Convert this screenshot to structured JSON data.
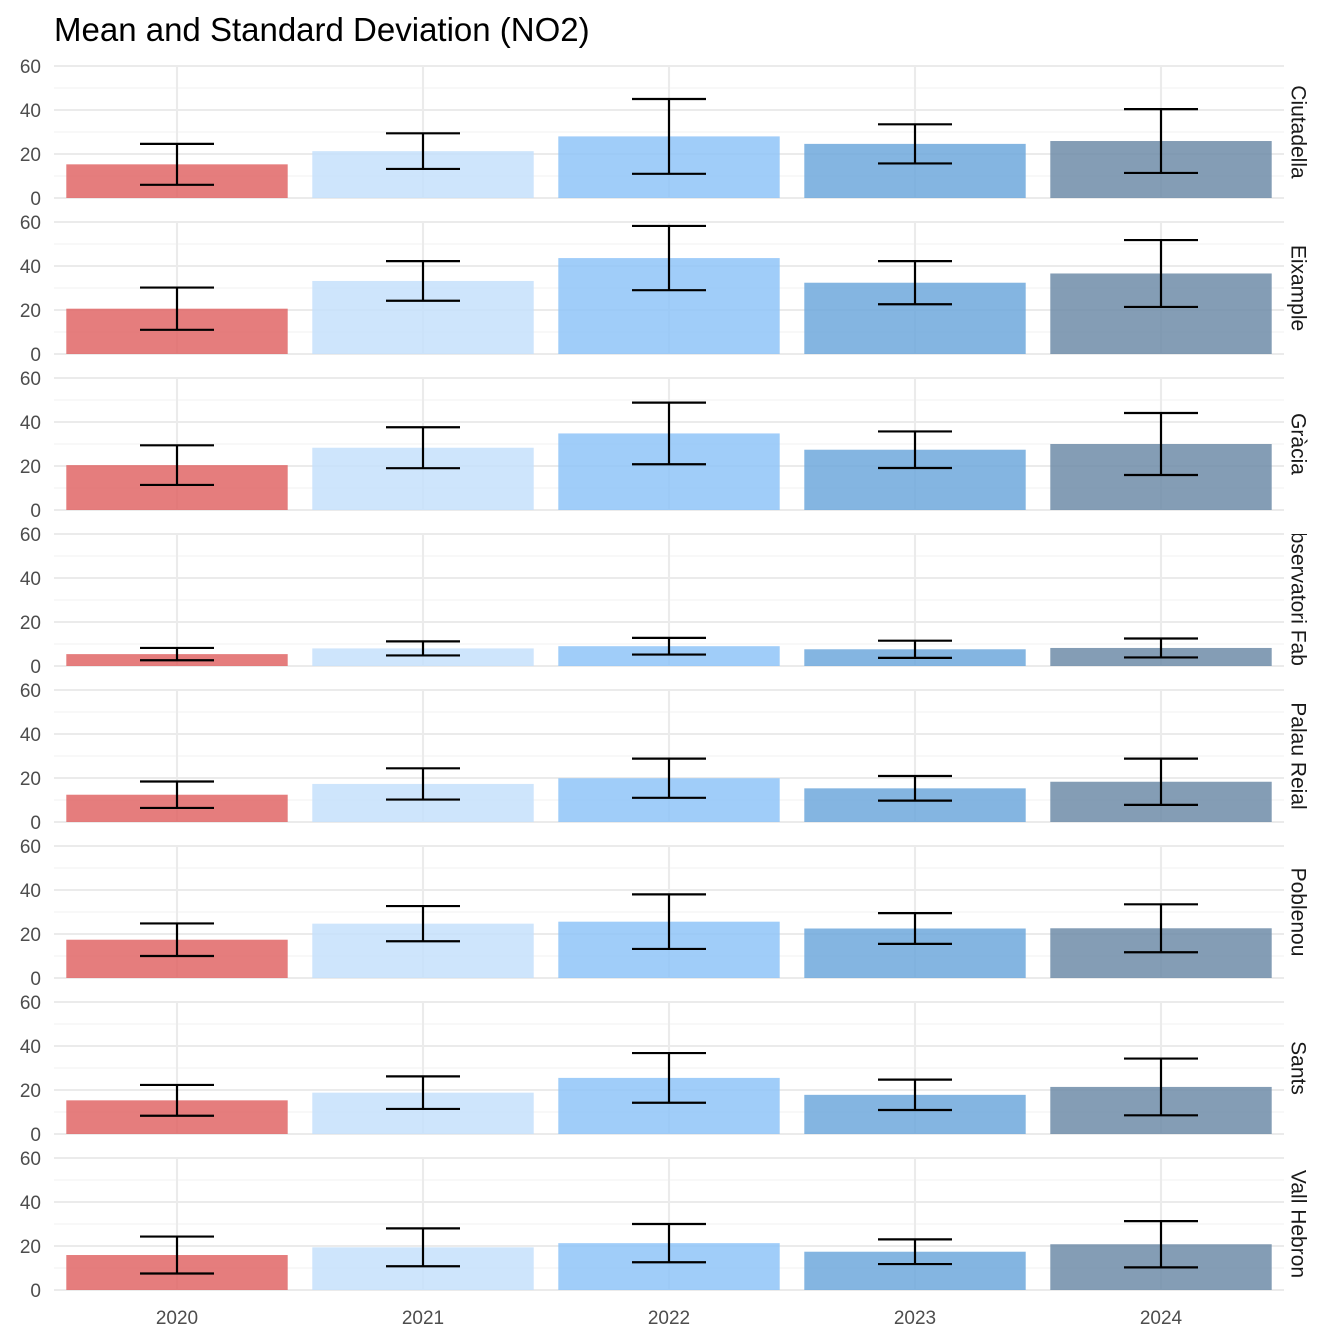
{
  "chart_data": {
    "type": "bar",
    "title": "Mean and Standard Deviation (NO2)",
    "xlabel": "",
    "ylabel": "",
    "categories": [
      "2020",
      "2021",
      "2022",
      "2023",
      "2024"
    ],
    "ylim": [
      0,
      60
    ],
    "yticks": [
      "0",
      "20",
      "40",
      "60"
    ],
    "grid": true,
    "legend": "none",
    "colors": {
      "2020": "#e06666",
      "2021": "#c6e0fb",
      "2022": "#8fc4f8",
      "2023": "#6fa8dc",
      "2024": "#6f8ca8"
    },
    "panels": [
      {
        "name": "Ciutadella",
        "mean": [
          15.3,
          21.3,
          28.0,
          24.6,
          25.9
        ],
        "sd": [
          9.3,
          8.1,
          17.0,
          8.9,
          14.5
        ]
      },
      {
        "name": "Eixample",
        "mean": [
          20.6,
          33.2,
          43.6,
          32.4,
          36.6
        ],
        "sd": [
          9.6,
          9.0,
          14.6,
          9.8,
          15.2
        ]
      },
      {
        "name": "Gràcia",
        "mean": [
          20.4,
          28.3,
          34.8,
          27.4,
          30.0
        ],
        "sd": [
          9.0,
          9.3,
          14.0,
          8.3,
          14.1
        ]
      },
      {
        "name": "Observatori Fabra",
        "mean": [
          5.4,
          8.0,
          9.0,
          7.6,
          8.2
        ],
        "sd": [
          2.8,
          3.2,
          3.8,
          3.9,
          4.3
        ]
      },
      {
        "name": "Palau Reial",
        "mean": [
          12.4,
          17.3,
          19.9,
          15.3,
          18.3
        ],
        "sd": [
          6.0,
          7.1,
          8.9,
          5.6,
          10.5
        ]
      },
      {
        "name": "Poblenou",
        "mean": [
          17.4,
          24.7,
          25.6,
          22.5,
          22.6
        ],
        "sd": [
          7.4,
          8.0,
          12.4,
          7.0,
          10.9
        ]
      },
      {
        "name": "Sants",
        "mean": [
          15.3,
          18.8,
          25.5,
          17.8,
          21.4
        ],
        "sd": [
          7.0,
          7.4,
          11.3,
          6.9,
          12.9
        ]
      },
      {
        "name": "Vall Hebron",
        "mean": [
          15.9,
          19.4,
          21.3,
          17.4,
          20.8
        ],
        "sd": [
          8.4,
          8.6,
          8.7,
          5.6,
          10.5
        ]
      }
    ]
  }
}
